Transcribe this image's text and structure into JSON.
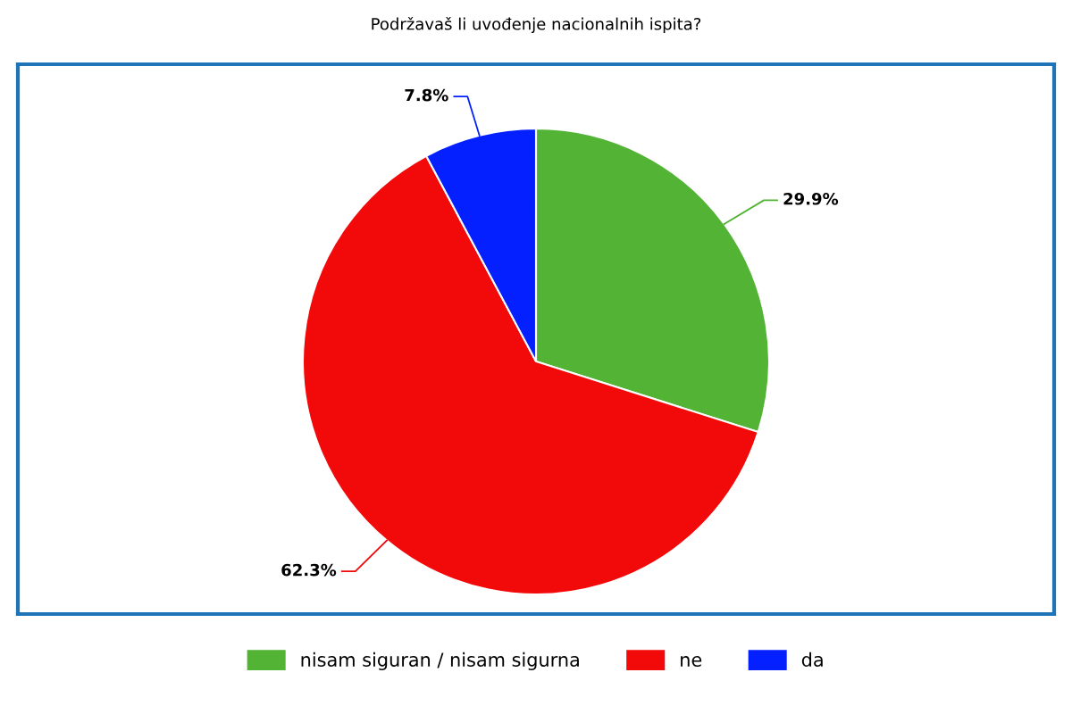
{
  "chart_data": {
    "type": "pie",
    "title": "Podržavaš li uvođenje nacionalnih ispita?",
    "categories": [
      "nisam siguran / nisam sigurna",
      "ne",
      "da"
    ],
    "values": [
      29.9,
      62.3,
      7.8
    ],
    "colors": [
      "#52b335",
      "#f20a0a",
      "#0520ff"
    ],
    "value_labels": [
      "29.9%",
      "62.3%",
      "7.8%"
    ],
    "legend": "bottom"
  }
}
